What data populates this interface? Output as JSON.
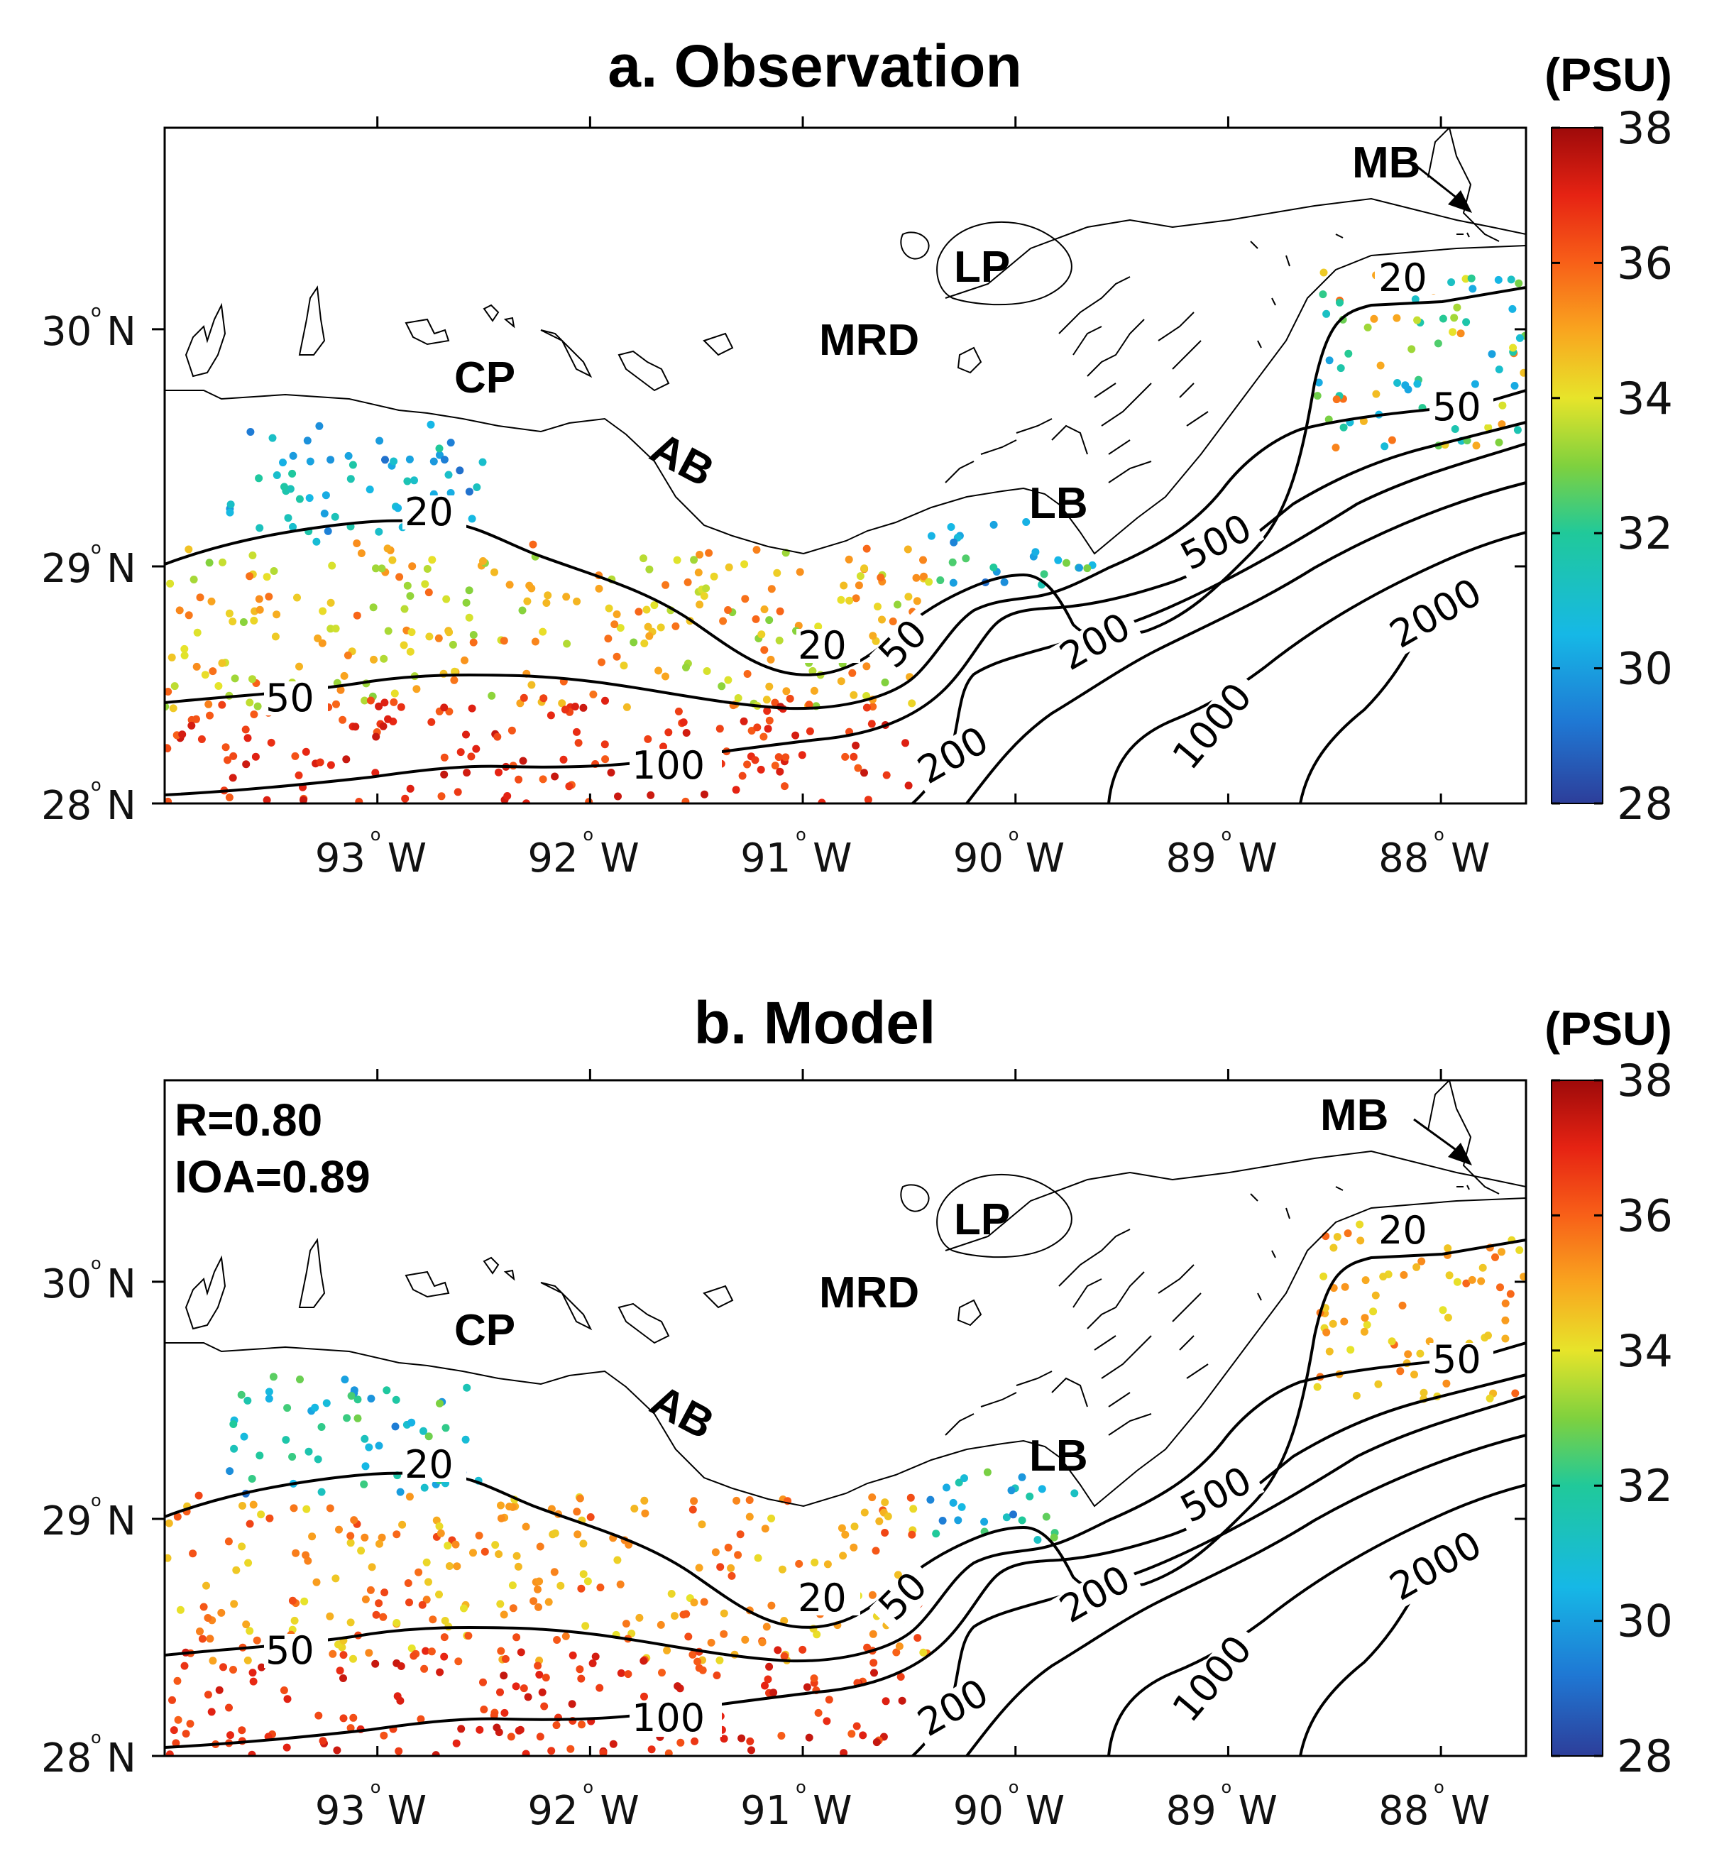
{
  "chart_data": [
    {
      "type": "scatter",
      "title": "a. Observation",
      "variable": "salinity",
      "colorbar": {
        "unit": "(PSU)",
        "range": [
          28,
          38
        ],
        "ticks": [
          "38",
          "36",
          "34",
          "32",
          "30",
          "28"
        ],
        "colormap": "jet"
      },
      "xlim": [
        -94.0,
        -87.6
      ],
      "ylim": [
        28.0,
        30.85
      ],
      "xticks": [
        {
          "value": -93,
          "label": "93"
        },
        {
          "value": -92,
          "label": "92"
        },
        {
          "value": -91,
          "label": "91"
        },
        {
          "value": -90,
          "label": "90"
        },
        {
          "value": -89,
          "label": "89"
        },
        {
          "value": -88,
          "label": "88"
        }
      ],
      "xtick_suffix": "W",
      "yticks": [
        {
          "value": 30,
          "label": "30"
        },
        {
          "value": 29,
          "label": "29"
        },
        {
          "value": 28,
          "label": "28"
        }
      ],
      "ytick_suffix": "N",
      "degree_symbol": "o",
      "place_labels": [
        {
          "text": "MB",
          "lon": -88.4,
          "lat": 30.62
        },
        {
          "text": "LP",
          "lon": -90.1,
          "lat": 30.21
        },
        {
          "text": "CP",
          "lon": -92.5,
          "lat": 29.72
        },
        {
          "text": "MRD",
          "lon": -90.65,
          "lat": 29.82
        },
        {
          "text": "AB",
          "lon": -91.5,
          "lat": 29.4
        },
        {
          "text": "LB",
          "lon": -89.76,
          "lat": 29.14
        }
      ],
      "bathymetry_contour_labels": [
        "20",
        "20",
        "20",
        "50",
        "50",
        "50",
        "100",
        "200",
        "200",
        "500",
        "1000",
        "2000"
      ],
      "salinity_pattern": [
        {
          "region": "inner shelf west, north of 20 m isobath",
          "lon": [
            -93.7,
            -92.5
          ],
          "lat": [
            29.1,
            29.6
          ],
          "salinity_range": [
            29,
            32
          ]
        },
        {
          "region": "mid shelf between 20 m and 50 m isobaths",
          "lon": [
            -94.0,
            -90.4
          ],
          "lat": [
            28.4,
            29.1
          ],
          "salinity_range": [
            33,
            36
          ]
        },
        {
          "region": "outer shelf south of 50 m isobath",
          "lon": [
            -94.0,
            -90.5
          ],
          "lat": [
            28.0,
            28.45
          ],
          "salinity_range": [
            36,
            37.5
          ]
        },
        {
          "region": "near Mississippi River Delta / LB",
          "lon": [
            -90.4,
            -89.6
          ],
          "lat": [
            28.9,
            29.2
          ],
          "salinity_range": [
            29,
            33
          ]
        },
        {
          "region": "Mississippi Bight",
          "lon": [
            -88.6,
            -87.6
          ],
          "lat": [
            29.5,
            30.25
          ],
          "salinity_range": [
            30,
            36
          ]
        }
      ]
    },
    {
      "type": "scatter",
      "title": "b. Model",
      "variable": "salinity",
      "colorbar": {
        "unit": "(PSU)",
        "range": [
          28,
          38
        ],
        "ticks": [
          "38",
          "36",
          "34",
          "32",
          "30",
          "28"
        ],
        "colormap": "jet"
      },
      "stats": {
        "R": "R=0.80",
        "IOA": "IOA=0.89"
      },
      "xlim": [
        -94.0,
        -87.6
      ],
      "ylim": [
        28.0,
        30.85
      ],
      "xticks": [
        {
          "value": -93,
          "label": "93"
        },
        {
          "value": -92,
          "label": "92"
        },
        {
          "value": -91,
          "label": "91"
        },
        {
          "value": -90,
          "label": "90"
        },
        {
          "value": -89,
          "label": "89"
        },
        {
          "value": -88,
          "label": "88"
        }
      ],
      "xtick_suffix": "W",
      "yticks": [
        {
          "value": 30,
          "label": "30"
        },
        {
          "value": 29,
          "label": "29"
        },
        {
          "value": 28,
          "label": "28"
        }
      ],
      "ytick_suffix": "N",
      "degree_symbol": "o",
      "place_labels": [
        {
          "text": "MB",
          "lon": -88.4,
          "lat": 30.62
        },
        {
          "text": "LP",
          "lon": -90.1,
          "lat": 30.21
        },
        {
          "text": "CP",
          "lon": -92.5,
          "lat": 29.72
        },
        {
          "text": "MRD",
          "lon": -90.65,
          "lat": 29.82
        },
        {
          "text": "AB",
          "lon": -91.5,
          "lat": 29.4
        },
        {
          "text": "LB",
          "lon": -89.76,
          "lat": 29.14
        }
      ],
      "bathymetry_contour_labels": [
        "20",
        "20",
        "20",
        "50",
        "50",
        "50",
        "100",
        "200",
        "200",
        "500",
        "1000",
        "2000"
      ],
      "salinity_pattern": [
        {
          "region": "inner shelf west, north of 20 m isobath",
          "lon": [
            -93.7,
            -92.5
          ],
          "lat": [
            29.1,
            29.6
          ],
          "salinity_range": [
            29,
            33
          ]
        },
        {
          "region": "mid shelf between 20 m and 50 m isobaths",
          "lon": [
            -94.0,
            -90.4
          ],
          "lat": [
            28.4,
            29.1
          ],
          "salinity_range": [
            34,
            36.5
          ]
        },
        {
          "region": "outer shelf south of 50 m isobath",
          "lon": [
            -94.0,
            -90.5
          ],
          "lat": [
            28.0,
            28.45
          ],
          "salinity_range": [
            36,
            37.5
          ]
        },
        {
          "region": "near Mississippi River Delta / LB",
          "lon": [
            -90.4,
            -89.6
          ],
          "lat": [
            28.9,
            29.2
          ],
          "salinity_range": [
            29,
            33
          ]
        },
        {
          "region": "Mississippi Bight",
          "lon": [
            -88.6,
            -87.6
          ],
          "lat": [
            29.5,
            30.25
          ],
          "salinity_range": [
            34,
            36
          ]
        }
      ]
    }
  ]
}
